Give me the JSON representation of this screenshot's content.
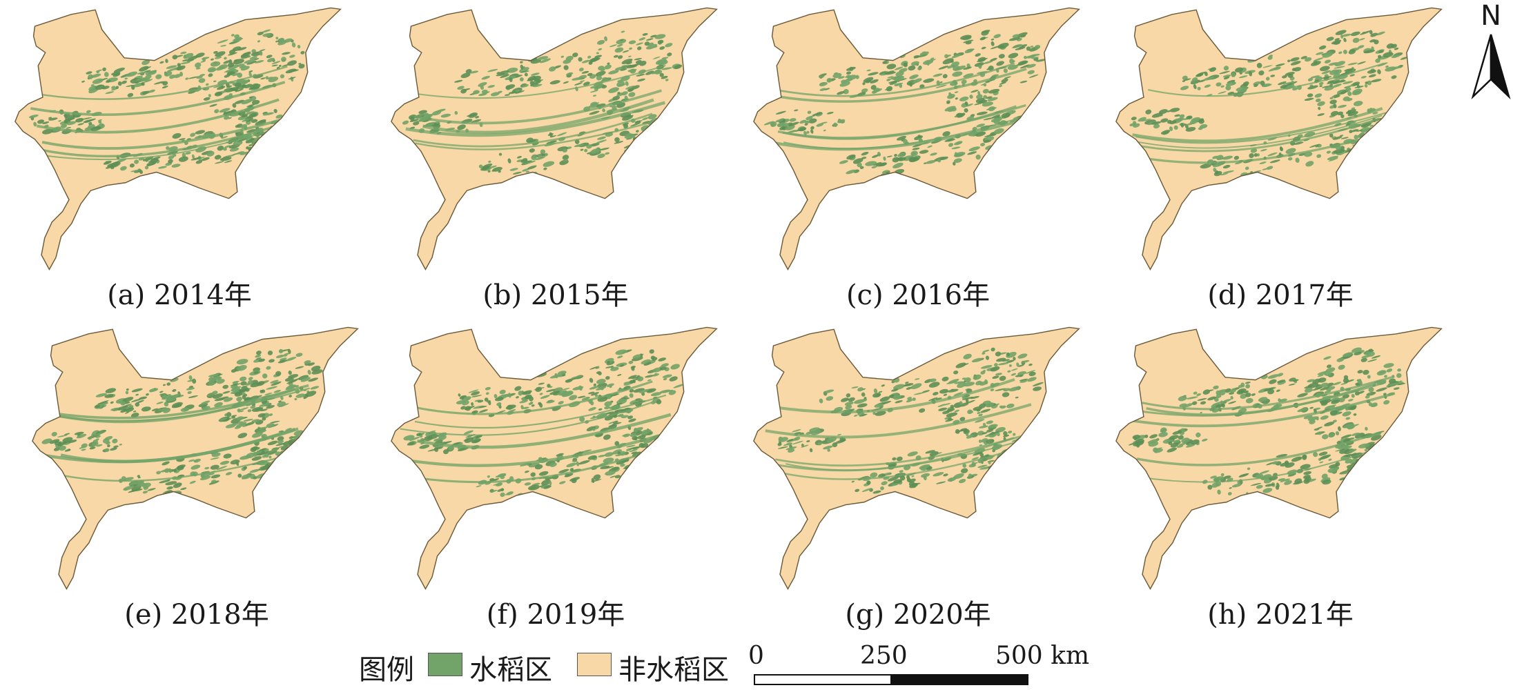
{
  "colors": {
    "rice": "#72a368",
    "rice_dark": "#5c8f55",
    "non_rice": "#f7d8a6",
    "outline": "#6a5a3a"
  },
  "north_arrow": {
    "label": "N"
  },
  "panels": [
    {
      "caption": "(a) 2014年",
      "rice_level": 0.55
    },
    {
      "caption": "(b) 2015年",
      "rice_level": 0.45
    },
    {
      "caption": "(c) 2016年",
      "rice_level": 0.5
    },
    {
      "caption": "(d) 2017年",
      "rice_level": 0.48
    },
    {
      "caption": "(e) 2018年",
      "rice_level": 0.58
    },
    {
      "caption": "(f) 2019年",
      "rice_level": 0.55
    },
    {
      "caption": "(g) 2020年",
      "rice_level": 0.45
    },
    {
      "caption": "(h) 2021年",
      "rice_level": 0.5
    }
  ],
  "legend": {
    "title": "图例",
    "items": [
      {
        "label": "水稻区",
        "color": "#72a368"
      },
      {
        "label": "非水稻区",
        "color": "#f7d8a6"
      }
    ]
  },
  "scale_bar": {
    "ticks": [
      "0",
      "250",
      "500 km"
    ]
  }
}
